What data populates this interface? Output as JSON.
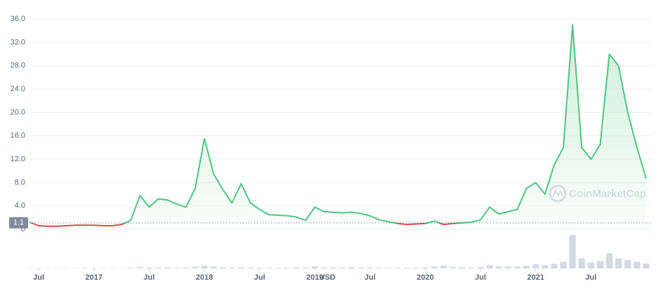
{
  "chart_data": {
    "type": "line",
    "x": [
      "2016-06",
      "2016-07",
      "2016-08",
      "2016-09",
      "2016-10",
      "2016-11",
      "2016-12",
      "2017-01",
      "2017-02",
      "2017-03",
      "2017-04",
      "2017-05",
      "2017-06",
      "2017-07",
      "2017-08",
      "2017-09",
      "2017-10",
      "2017-11",
      "2017-12",
      "2018-01",
      "2018-02",
      "2018-03",
      "2018-04",
      "2018-05",
      "2018-06",
      "2018-07",
      "2018-08",
      "2018-09",
      "2018-10",
      "2018-11",
      "2018-12",
      "2019-01",
      "2019-02",
      "2019-03",
      "2019-04",
      "2019-05",
      "2019-06",
      "2019-07",
      "2019-08",
      "2019-09",
      "2019-10",
      "2019-11",
      "2019-12",
      "2020-01",
      "2020-02",
      "2020-03",
      "2020-04",
      "2020-05",
      "2020-06",
      "2020-07",
      "2020-08",
      "2020-09",
      "2020-10",
      "2020-11",
      "2020-12",
      "2021-01",
      "2021-02",
      "2021-03",
      "2021-04",
      "2021-05",
      "2021-06",
      "2021-07",
      "2021-08",
      "2021-09",
      "2021-10",
      "2021-11",
      "2021-12",
      "2022-01"
    ],
    "values": [
      1.2,
      0.6,
      0.5,
      0.5,
      0.6,
      0.7,
      0.7,
      0.7,
      0.6,
      0.6,
      0.8,
      1.5,
      5.8,
      3.8,
      5.2,
      5.0,
      4.3,
      3.8,
      7.0,
      15.5,
      9.5,
      6.8,
      4.5,
      7.8,
      4.5,
      3.4,
      2.5,
      2.4,
      2.3,
      2.1,
      1.5,
      3.8,
      3.0,
      2.9,
      2.8,
      2.9,
      2.7,
      2.3,
      1.6,
      1.3,
      1.0,
      0.8,
      0.9,
      1.0,
      1.4,
      0.8,
      1.0,
      1.1,
      1.2,
      1.6,
      3.8,
      2.6,
      3.0,
      3.4,
      7.0,
      8.0,
      6.0,
      11.0,
      14.0,
      35.0,
      14.0,
      12.0,
      14.5,
      30.0,
      28.0,
      20.0,
      14.0,
      8.7
    ],
    "volume": [
      1,
      1,
      1,
      1,
      1,
      1,
      1,
      1,
      1,
      1,
      1,
      2,
      4,
      3,
      3,
      3,
      2,
      3,
      5,
      8,
      5,
      4,
      3,
      4,
      3,
      2,
      2,
      2,
      2,
      3,
      3,
      6,
      3,
      3,
      3,
      4,
      3,
      3,
      2,
      2,
      2,
      2,
      2,
      3,
      6,
      8,
      4,
      4,
      3,
      4,
      9,
      6,
      5,
      5,
      8,
      12,
      10,
      14,
      20,
      100,
      30,
      18,
      22,
      45,
      30,
      25,
      20,
      15
    ],
    "up_color": "#4fc580",
    "down_color": "#e04a4a",
    "xlim": [
      "2016-06",
      "2022-01"
    ],
    "xticks": [
      {
        "value": "2016-07",
        "label": "Jul"
      },
      {
        "value": "2017-01",
        "label": "2017"
      },
      {
        "value": "2017-07",
        "label": "Jul"
      },
      {
        "value": "2018-01",
        "label": "2018"
      },
      {
        "value": "2018-07",
        "label": "Jul"
      },
      {
        "value": "2019-01",
        "label": "2019"
      },
      {
        "value": "2019-07",
        "label": "Jul"
      },
      {
        "value": "2020-01",
        "label": "2020"
      },
      {
        "value": "2020-07",
        "label": "Jul"
      },
      {
        "value": "2021-01",
        "label": "2021"
      },
      {
        "value": "2021-07",
        "label": "Jul"
      }
    ],
    "ylim": [
      0,
      38
    ],
    "yticks": [
      0,
      {
        "value": 4,
        "label": "4.0"
      },
      {
        "value": 8,
        "label": "8.0"
      },
      {
        "value": 12,
        "label": "12.0"
      },
      {
        "value": 16,
        "label": "16.0"
      },
      {
        "value": 20,
        "label": "20.0"
      },
      {
        "value": 24,
        "label": "24.0"
      },
      {
        "value": 28,
        "label": "28.0"
      },
      {
        "value": 32,
        "label": "32.0"
      },
      {
        "value": 36,
        "label": "36.0"
      }
    ],
    "reference": {
      "value": 1.1,
      "label": "1.1"
    },
    "currency": "USD",
    "watermark": "CoinMarketCap",
    "grid": true
  }
}
